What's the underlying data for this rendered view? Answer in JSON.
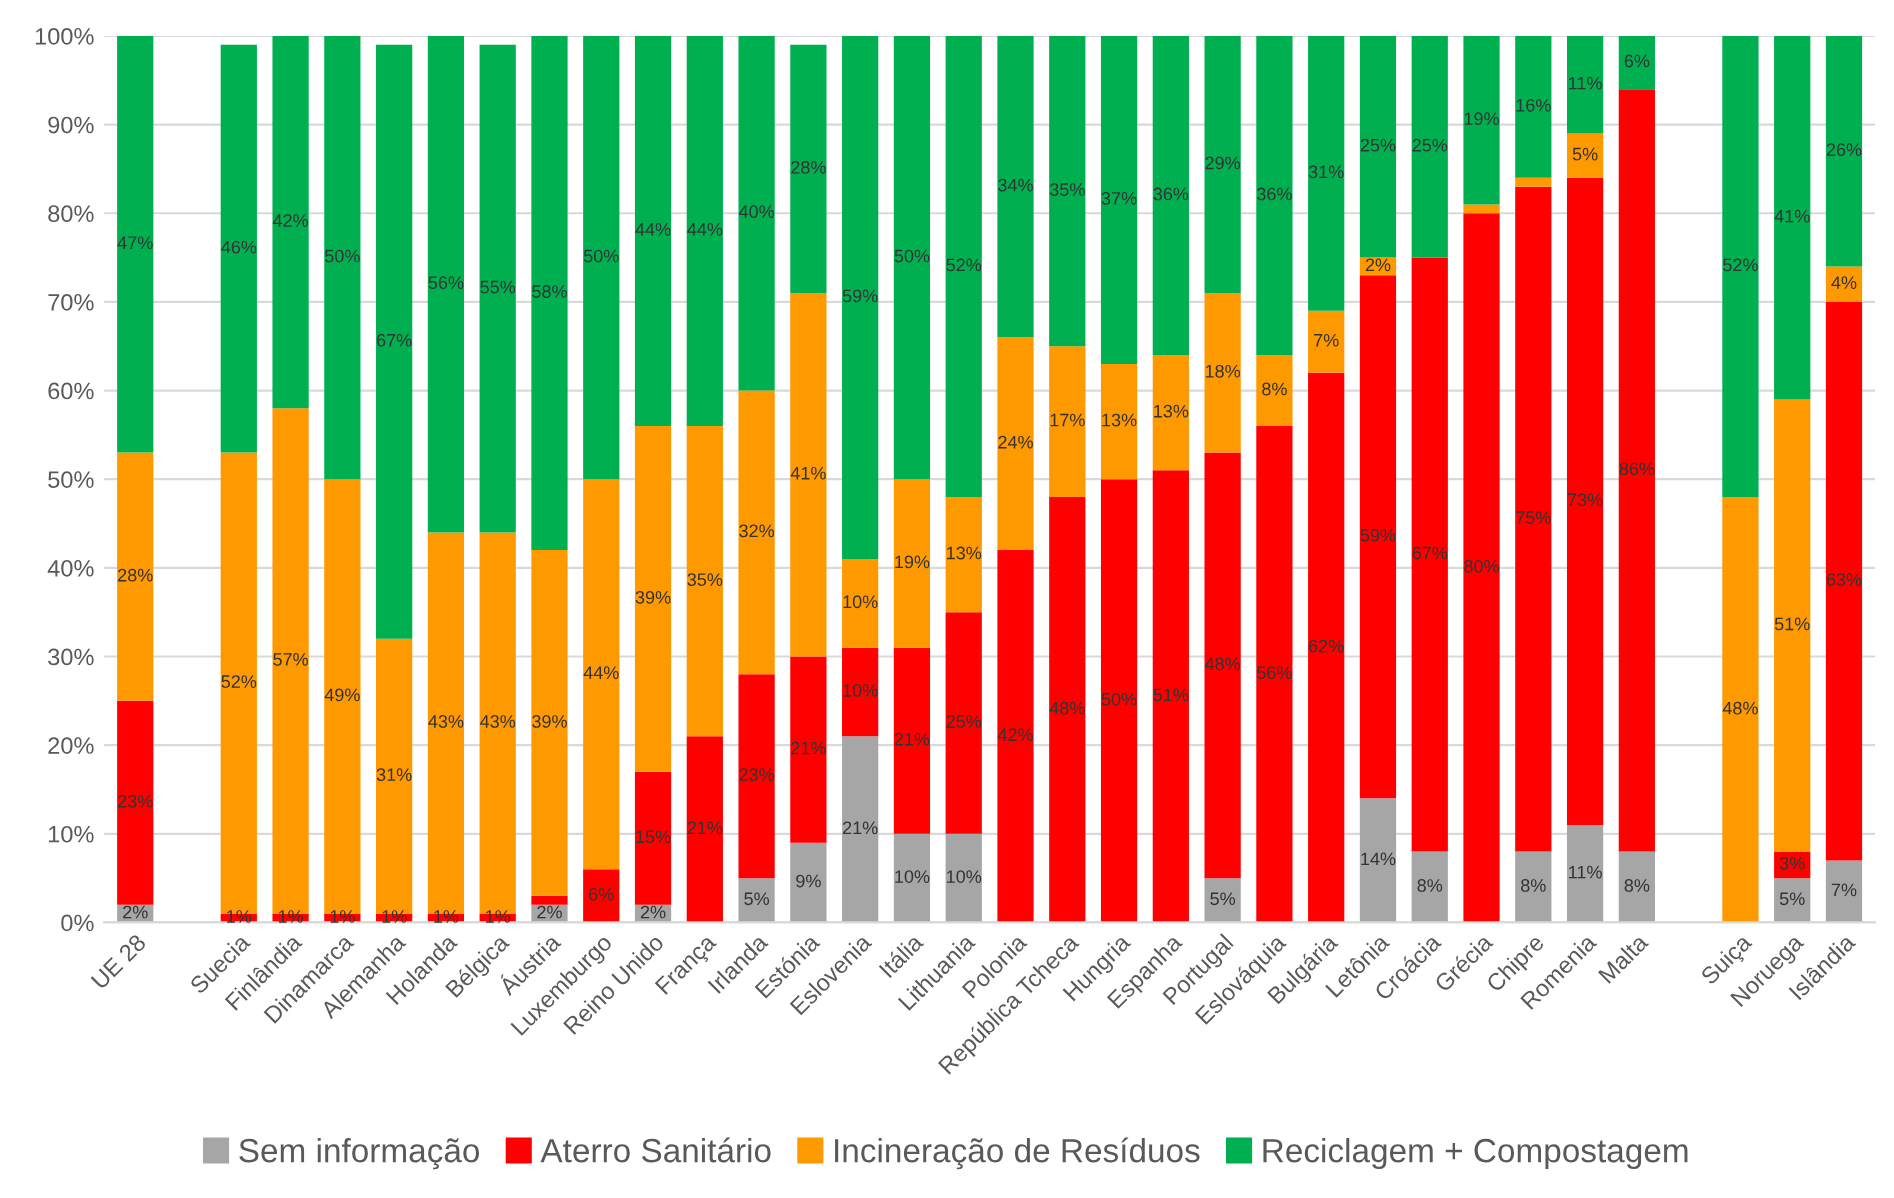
{
  "chart_data": {
    "type": "bar",
    "stacked": true,
    "categories": [
      "UE 28",
      null,
      "Suecia",
      "Finlândia",
      "Dinamarca",
      "Alemanha",
      "Holanda",
      "Bélgica",
      "Áustria",
      "Luxemburgo",
      "Reino Unido",
      "França",
      "Irlanda",
      "Estónia",
      "Eslovenia",
      "Itália",
      "Lithuania",
      "Polonia",
      "República Tcheca",
      "Hungria",
      "Espanha",
      "Portugal",
      "Eslováquia",
      "Bulgária",
      "Letônia",
      "Croácia",
      "Grécia",
      "Chipre",
      "Romenia",
      "Malta",
      null,
      "Suiça",
      "Noruega",
      "Islândia"
    ],
    "series": [
      {
        "name": "Sem informação",
        "color": "#a6a6a6",
        "values": [
          2,
          null,
          null,
          null,
          null,
          null,
          null,
          null,
          2,
          null,
          2,
          null,
          5,
          9,
          21,
          10,
          10,
          null,
          null,
          null,
          null,
          5,
          null,
          null,
          14,
          8,
          null,
          8,
          11,
          8,
          null,
          null,
          5,
          7
        ],
        "value_labels": [
          "2%",
          null,
          null,
          null,
          null,
          null,
          null,
          null,
          "2%",
          null,
          "2%",
          null,
          "5%",
          "9%",
          "21%",
          "10%",
          "10%",
          null,
          null,
          null,
          null,
          "5%",
          null,
          null,
          "14%",
          "8%",
          null,
          "8%",
          "11%",
          "8%",
          null,
          null,
          "5%",
          "7%"
        ]
      },
      {
        "name": "Aterro Sanitário",
        "color": "#ff0000",
        "values": [
          23,
          null,
          1,
          1,
          1,
          1,
          1,
          1,
          1,
          6,
          15,
          21,
          23,
          21,
          10,
          21,
          25,
          42,
          48,
          50,
          51,
          48,
          56,
          62,
          59,
          67,
          80,
          75,
          73,
          86,
          null,
          null,
          3,
          63
        ],
        "value_labels": [
          "23%",
          null,
          "1%",
          "1%",
          "1%",
          "1%",
          "1%",
          "1%",
          null,
          "6%",
          "15%",
          "21%",
          "23%",
          "21%",
          "10%",
          "21%",
          "25%",
          "42%",
          "48%",
          "50%",
          "51%",
          "48%",
          "56%",
          "62%",
          "59%",
          "67%",
          "80%",
          "75%",
          "73%",
          "86%",
          null,
          null,
          "3%",
          "63%"
        ]
      },
      {
        "name": "Incineração de Resíduos",
        "color": "#ff9900",
        "values": [
          28,
          null,
          52,
          57,
          49,
          31,
          43,
          43,
          39,
          44,
          39,
          35,
          32,
          41,
          10,
          19,
          13,
          24,
          17,
          13,
          13,
          18,
          8,
          7,
          2,
          null,
          1,
          1,
          5,
          null,
          null,
          48,
          51,
          4
        ],
        "value_labels": [
          "28%",
          null,
          "52%",
          "57%",
          "49%",
          "31%",
          "43%",
          "43%",
          "39%",
          "44%",
          "39%",
          "35%",
          "32%",
          "41%",
          "10%",
          "19%",
          "13%",
          "24%",
          "17%",
          "13%",
          "13%",
          "18%",
          "8%",
          "7%",
          "2%",
          null,
          null,
          null,
          "5%",
          null,
          null,
          "48%",
          "51%",
          "4%"
        ]
      },
      {
        "name": "Reciclagem + Compostagem",
        "color": "#00b050",
        "values": [
          47,
          null,
          46,
          42,
          50,
          67,
          56,
          55,
          58,
          50,
          44,
          44,
          40,
          28,
          59,
          50,
          52,
          34,
          35,
          37,
          36,
          29,
          36,
          31,
          25,
          25,
          19,
          16,
          11,
          6,
          null,
          52,
          41,
          26
        ],
        "value_labels": [
          "47%",
          null,
          "46%",
          "42%",
          "50%",
          "67%",
          "56%",
          "55%",
          "58%",
          "50%",
          "44%",
          "44%",
          "40%",
          "28%",
          "59%",
          "50%",
          "52%",
          "34%",
          "35%",
          "37%",
          "36%",
          "29%",
          "36%",
          "31%",
          "25%",
          "25%",
          "19%",
          "16%",
          "11%",
          "6%",
          null,
          "52%",
          "41%",
          "26%"
        ]
      }
    ],
    "ylim": [
      0,
      100
    ],
    "yticks": [
      {
        "value": 0,
        "label": "0%"
      },
      {
        "value": 10,
        "label": "10%"
      },
      {
        "value": 20,
        "label": "20%"
      },
      {
        "value": 30,
        "label": "30%"
      },
      {
        "value": 40,
        "label": "40%"
      },
      {
        "value": 50,
        "label": "50%"
      },
      {
        "value": 60,
        "label": "60%"
      },
      {
        "value": 70,
        "label": "70%"
      },
      {
        "value": 80,
        "label": "80%"
      },
      {
        "value": 90,
        "label": "90%"
      },
      {
        "value": 100,
        "label": "100%"
      }
    ],
    "grid": "y",
    "legend": "bottom"
  }
}
